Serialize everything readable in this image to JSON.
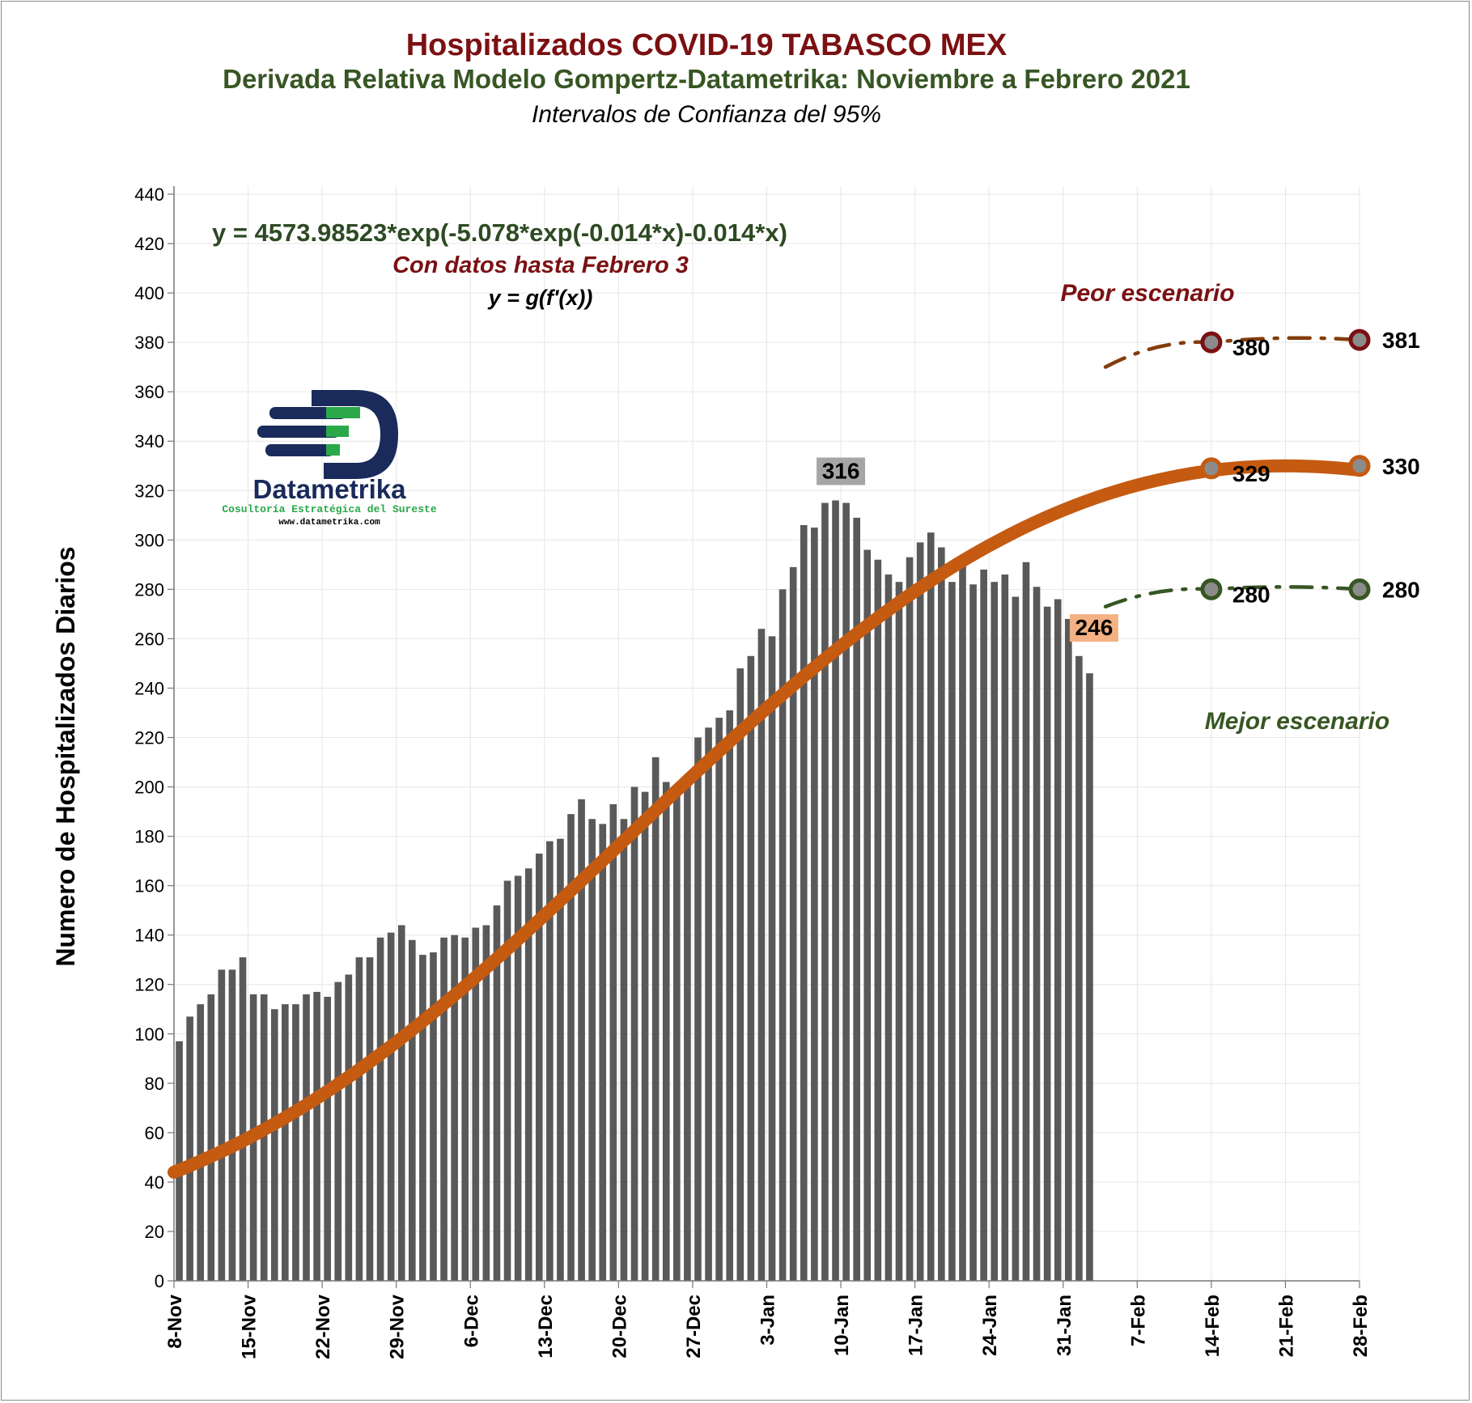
{
  "title": "Hospitalizados COVID-19 TABASCO MEX",
  "subtitle": "Derivada Relativa Modelo Gompertz-Datametrika: Noviembre a Febrero 2021",
  "subtitle2": "Intervalos de Confianza del 95%",
  "equation": "y = 4573.98523*exp(-5.078*exp(-0.014*x)-0.014*x)",
  "note_data": "Con datos hasta Febrero 3",
  "note_formula": "y = g(f'(x))",
  "label_worst": "Peor escenario",
  "label_best": "Mejor escenario",
  "logo": {
    "name": "Datametrika",
    "tagline": "Cosultoría Estratégica del Sureste",
    "url": "www.datametrika.com"
  },
  "colors": {
    "bar": "#595959",
    "fit": "#c55a11",
    "worst": "#7b1012",
    "worst_line": "#843c0c",
    "best": "#375623",
    "best_line": "#375623",
    "title": "#7b1012",
    "subtitle": "#375623",
    "peak_box": "#a6a6a6",
    "last_box": "#f4b183"
  },
  "chart_data": {
    "type": "bar",
    "ylabel": "Numero de Hospitalizados Diarios",
    "xlabel": "",
    "ylim": [
      0,
      440
    ],
    "yticks": [
      0,
      20,
      40,
      60,
      80,
      100,
      120,
      140,
      160,
      180,
      200,
      220,
      240,
      260,
      280,
      300,
      320,
      340,
      360,
      380,
      400,
      420,
      440
    ],
    "grid": true,
    "x_tick_labels": [
      "8-Nov",
      "15-Nov",
      "22-Nov",
      "29-Nov",
      "6-Dec",
      "13-Dec",
      "20-Dec",
      "27-Dec",
      "3-Jan",
      "10-Jan",
      "17-Jan",
      "24-Jan",
      "31-Jan",
      "7-Feb",
      "14-Feb",
      "21-Feb",
      "28-Feb"
    ],
    "x_start": "8-Nov",
    "x_end": "28-Feb",
    "bars": {
      "name": "Hospitalizados diarios",
      "start": "8-Nov",
      "values": [
        97,
        107,
        112,
        116,
        126,
        126,
        131,
        116,
        116,
        110,
        112,
        112,
        116,
        117,
        115,
        121,
        124,
        131,
        131,
        139,
        141,
        144,
        138,
        132,
        133,
        139,
        140,
        139,
        143,
        144,
        152,
        162,
        164,
        167,
        173,
        178,
        179,
        189,
        195,
        187,
        185,
        193,
        187,
        200,
        198,
        212,
        202,
        200,
        205,
        220,
        224,
        228,
        231,
        248,
        253,
        264,
        261,
        280,
        289,
        306,
        305,
        315,
        316,
        315,
        309,
        296,
        292,
        286,
        283,
        293,
        299,
        303,
        297,
        283,
        292,
        282,
        288,
        283,
        286,
        277,
        291,
        281,
        273,
        276,
        268,
        253,
        246
      ]
    },
    "fit_curve": {
      "name": "Modelo Gompertz",
      "equation": "y = 4573.98523*exp(-5.078*exp(-0.014*x)-0.014*x)",
      "start": "8-Nov",
      "end": "28-Feb",
      "points": [
        {
          "x": "8-Nov",
          "y": 44
        },
        {
          "x": "14-Feb",
          "y": 329
        },
        {
          "x": "28-Feb",
          "y": 330
        }
      ]
    },
    "worst_case": {
      "name": "Peor escenario",
      "points": [
        {
          "x": "4-Feb",
          "y": 370
        },
        {
          "x": "14-Feb",
          "y": 380
        },
        {
          "x": "28-Feb",
          "y": 381
        }
      ]
    },
    "best_case": {
      "name": "Mejor escenario",
      "points": [
        {
          "x": "4-Feb",
          "y": 273
        },
        {
          "x": "14-Feb",
          "y": 280
        },
        {
          "x": "28-Feb",
          "y": 280
        }
      ]
    },
    "annotations": [
      {
        "label": "316",
        "x": "10-Jan",
        "y": 316,
        "type": "peak"
      },
      {
        "label": "246",
        "x": "2-Feb",
        "y": 246,
        "type": "last"
      },
      {
        "label": "380",
        "x": "14-Feb",
        "y": 380,
        "series": "worst"
      },
      {
        "label": "381",
        "x": "28-Feb",
        "y": 381,
        "series": "worst"
      },
      {
        "label": "329",
        "x": "14-Feb",
        "y": 329,
        "series": "fit"
      },
      {
        "label": "330",
        "x": "28-Feb",
        "y": 330,
        "series": "fit"
      },
      {
        "label": "280",
        "x": "14-Feb",
        "y": 280,
        "series": "best"
      },
      {
        "label": "280",
        "x": "28-Feb",
        "y": 280,
        "series": "best"
      }
    ]
  }
}
